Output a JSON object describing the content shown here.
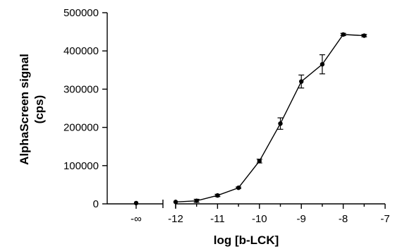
{
  "chart_data": {
    "type": "line",
    "xlabel": "log [b-LCK]",
    "ylabel_line1": "AlphaScreen signal",
    "ylabel_line2": "(cps)",
    "ylim": [
      0,
      500000
    ],
    "y_ticks": [
      0,
      100000,
      200000,
      300000,
      400000,
      500000
    ],
    "y_tick_labels": [
      "0",
      "100000",
      "200000",
      "300000",
      "400000",
      "500000"
    ],
    "xlim": [
      -12.75,
      -7
    ],
    "x_ticks": [
      -12,
      -11,
      -10,
      -9,
      -8,
      -7
    ],
    "x_tick_labels": [
      "-12",
      "-11",
      "-10",
      "-9",
      "-8",
      "-7"
    ],
    "x_minor_ticks": [
      -11.5,
      -10.5,
      -9.5,
      -8.5,
      -7.5
    ],
    "broken_axis": {
      "label": "-∞",
      "segment_ticks": [
        "-∞",
        "-∞ right"
      ],
      "point": {
        "y": 2000,
        "err": 0
      }
    },
    "series": [
      {
        "x": [
          -12,
          -11.5,
          -11,
          -10.5,
          -10,
          -9.5,
          -9,
          -8.5,
          -8,
          -7.5
        ],
        "y": [
          5000,
          8000,
          22000,
          42000,
          112000,
          210000,
          320000,
          365000,
          443000,
          440000
        ],
        "err": [
          0,
          4000,
          3000,
          2000,
          5000,
          15000,
          17000,
          25000,
          3000,
          3000
        ]
      }
    ]
  }
}
